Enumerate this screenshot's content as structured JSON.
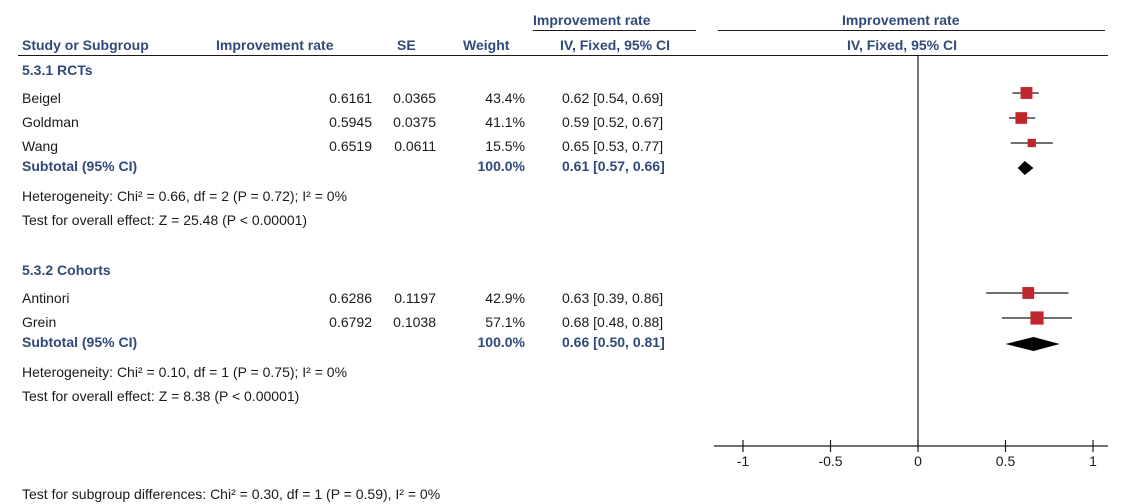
{
  "header": {
    "group1_top": "Improvement rate",
    "group2_top": "Improvement rate",
    "col_study": "Study or Subgroup",
    "col_rate": "Improvement rate",
    "col_se": "SE",
    "col_weight": "Weight",
    "col_ci": "IV, Fixed, 95% CI",
    "col_plot": "IV, Fixed, 95% CI"
  },
  "subgroups": [
    {
      "title": "5.3.1 RCTs",
      "studies": [
        {
          "name": "Beigel",
          "rate": "0.6161",
          "se": "0.0365",
          "weight": "43.4%",
          "ci": "0.62 [0.54, 0.69]"
        },
        {
          "name": "Goldman",
          "rate": "0.5945",
          "se": "0.0375",
          "weight": "41.1%",
          "ci": "0.59 [0.52, 0.67]"
        },
        {
          "name": "Wang",
          "rate": "0.6519",
          "se": "0.0611",
          "weight": "15.5%",
          "ci": "0.65 [0.53, 0.77]"
        }
      ],
      "subtotal": {
        "label": "Subtotal (95% CI)",
        "weight": "100.0%",
        "ci": "0.61 [0.57, 0.66]"
      },
      "heterogeneity": "Heterogeneity: Chi² = 0.66, df = 2 (P = 0.72); I² = 0%",
      "overall": "Test for overall effect: Z = 25.48 (P < 0.00001)"
    },
    {
      "title": "5.3.2 Cohorts",
      "studies": [
        {
          "name": "Antinori",
          "rate": "0.6286",
          "se": "0.1197",
          "weight": "42.9%",
          "ci": "0.63 [0.39, 0.86]"
        },
        {
          "name": "Grein",
          "rate": "0.6792",
          "se": "0.1038",
          "weight": "57.1%",
          "ci": "0.68 [0.48, 0.88]"
        }
      ],
      "subtotal": {
        "label": "Subtotal (95% CI)",
        "weight": "100.0%",
        "ci": "0.66 [0.50, 0.81]"
      },
      "heterogeneity": "Heterogeneity: Chi² = 0.10, df = 1 (P = 0.75); I² = 0%",
      "overall": "Test for overall effect: Z = 8.38 (P < 0.00001)"
    }
  ],
  "footer": "Test for subgroup differences: Chi² = 0.30, df = 1 (P = 0.59), I² = 0%",
  "chart_data": {
    "type": "scatter",
    "subtype": "forest-plot",
    "xlim": [
      -1,
      1
    ],
    "xticks": [
      "-1",
      "-0.5",
      "0",
      "0.5",
      "1"
    ],
    "study_color": "#c0272d",
    "diamond_color": "#000000",
    "studies": [
      {
        "name": "Beigel",
        "estimate": 0.62,
        "lower": 0.54,
        "upper": 0.69,
        "weight": 43.4
      },
      {
        "name": "Goldman",
        "estimate": 0.59,
        "lower": 0.52,
        "upper": 0.67,
        "weight": 41.1
      },
      {
        "name": "Wang",
        "estimate": 0.65,
        "lower": 0.53,
        "upper": 0.77,
        "weight": 15.5
      },
      {
        "name": "Antinori",
        "estimate": 0.63,
        "lower": 0.39,
        "upper": 0.86,
        "weight": 42.9
      },
      {
        "name": "Grein",
        "estimate": 0.68,
        "lower": 0.48,
        "upper": 0.88,
        "weight": 57.1
      }
    ],
    "subtotals": [
      {
        "name": "5.3.1 RCTs",
        "estimate": 0.61,
        "lower": 0.57,
        "upper": 0.66
      },
      {
        "name": "5.3.2 Cohorts",
        "estimate": 0.66,
        "lower": 0.5,
        "upper": 0.81
      }
    ]
  }
}
